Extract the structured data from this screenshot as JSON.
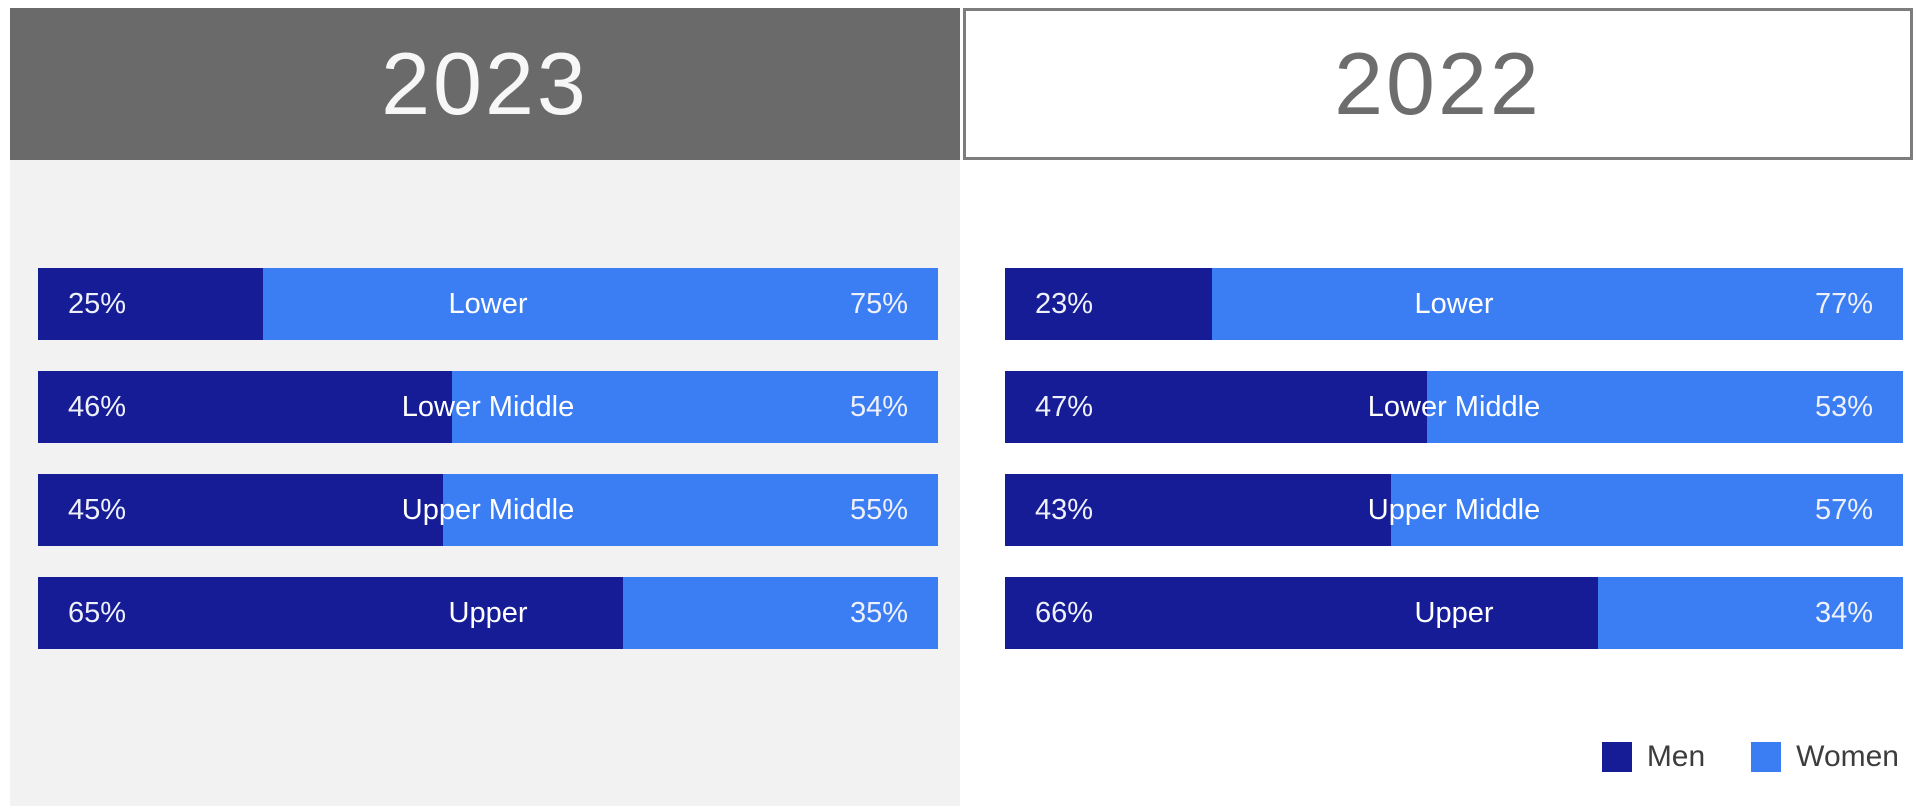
{
  "colors": {
    "men": "#151c96",
    "women": "#3b7df2",
    "header_2023_bg": "#6a6a6a",
    "header_2023_text": "#f7f7f7",
    "header_2022_bg": "#ffffff",
    "header_2022_text": "#6d6d6d",
    "header_2022_border": "#7d7d7d",
    "panel_2023_bg": "#f2f2f2",
    "panel_2022_bg": "#ffffff",
    "bar_text": "#eef0fa",
    "legend_text": "#3d3d3d",
    "page_bg": "#ffffff"
  },
  "chart_data": [
    {
      "type": "bar",
      "title": "2023",
      "orientation": "horizontal_stacked_100pct",
      "categories": [
        "Lower",
        "Lower Middle",
        "Upper Middle",
        "Upper"
      ],
      "series": [
        {
          "name": "Men",
          "color": "#151c96",
          "values": [
            25,
            46,
            45,
            65
          ]
        },
        {
          "name": "Women",
          "color": "#3b7df2",
          "values": [
            75,
            54,
            55,
            35
          ]
        }
      ],
      "value_suffix": "%",
      "xlim": [
        0,
        100
      ],
      "grid": false,
      "legend_position": "none"
    },
    {
      "type": "bar",
      "title": "2022",
      "orientation": "horizontal_stacked_100pct",
      "categories": [
        "Lower",
        "Lower Middle",
        "Upper Middle",
        "Upper"
      ],
      "series": [
        {
          "name": "Men",
          "color": "#151c96",
          "values": [
            23,
            47,
            43,
            66
          ]
        },
        {
          "name": "Women",
          "color": "#3b7df2",
          "values": [
            77,
            53,
            57,
            34
          ]
        }
      ],
      "value_suffix": "%",
      "xlim": [
        0,
        100
      ],
      "grid": false,
      "legend_position": "bottom-right"
    }
  ],
  "legend": {
    "items": [
      {
        "label": "Men",
        "color": "#151c96"
      },
      {
        "label": "Women",
        "color": "#3b7df2"
      }
    ]
  }
}
